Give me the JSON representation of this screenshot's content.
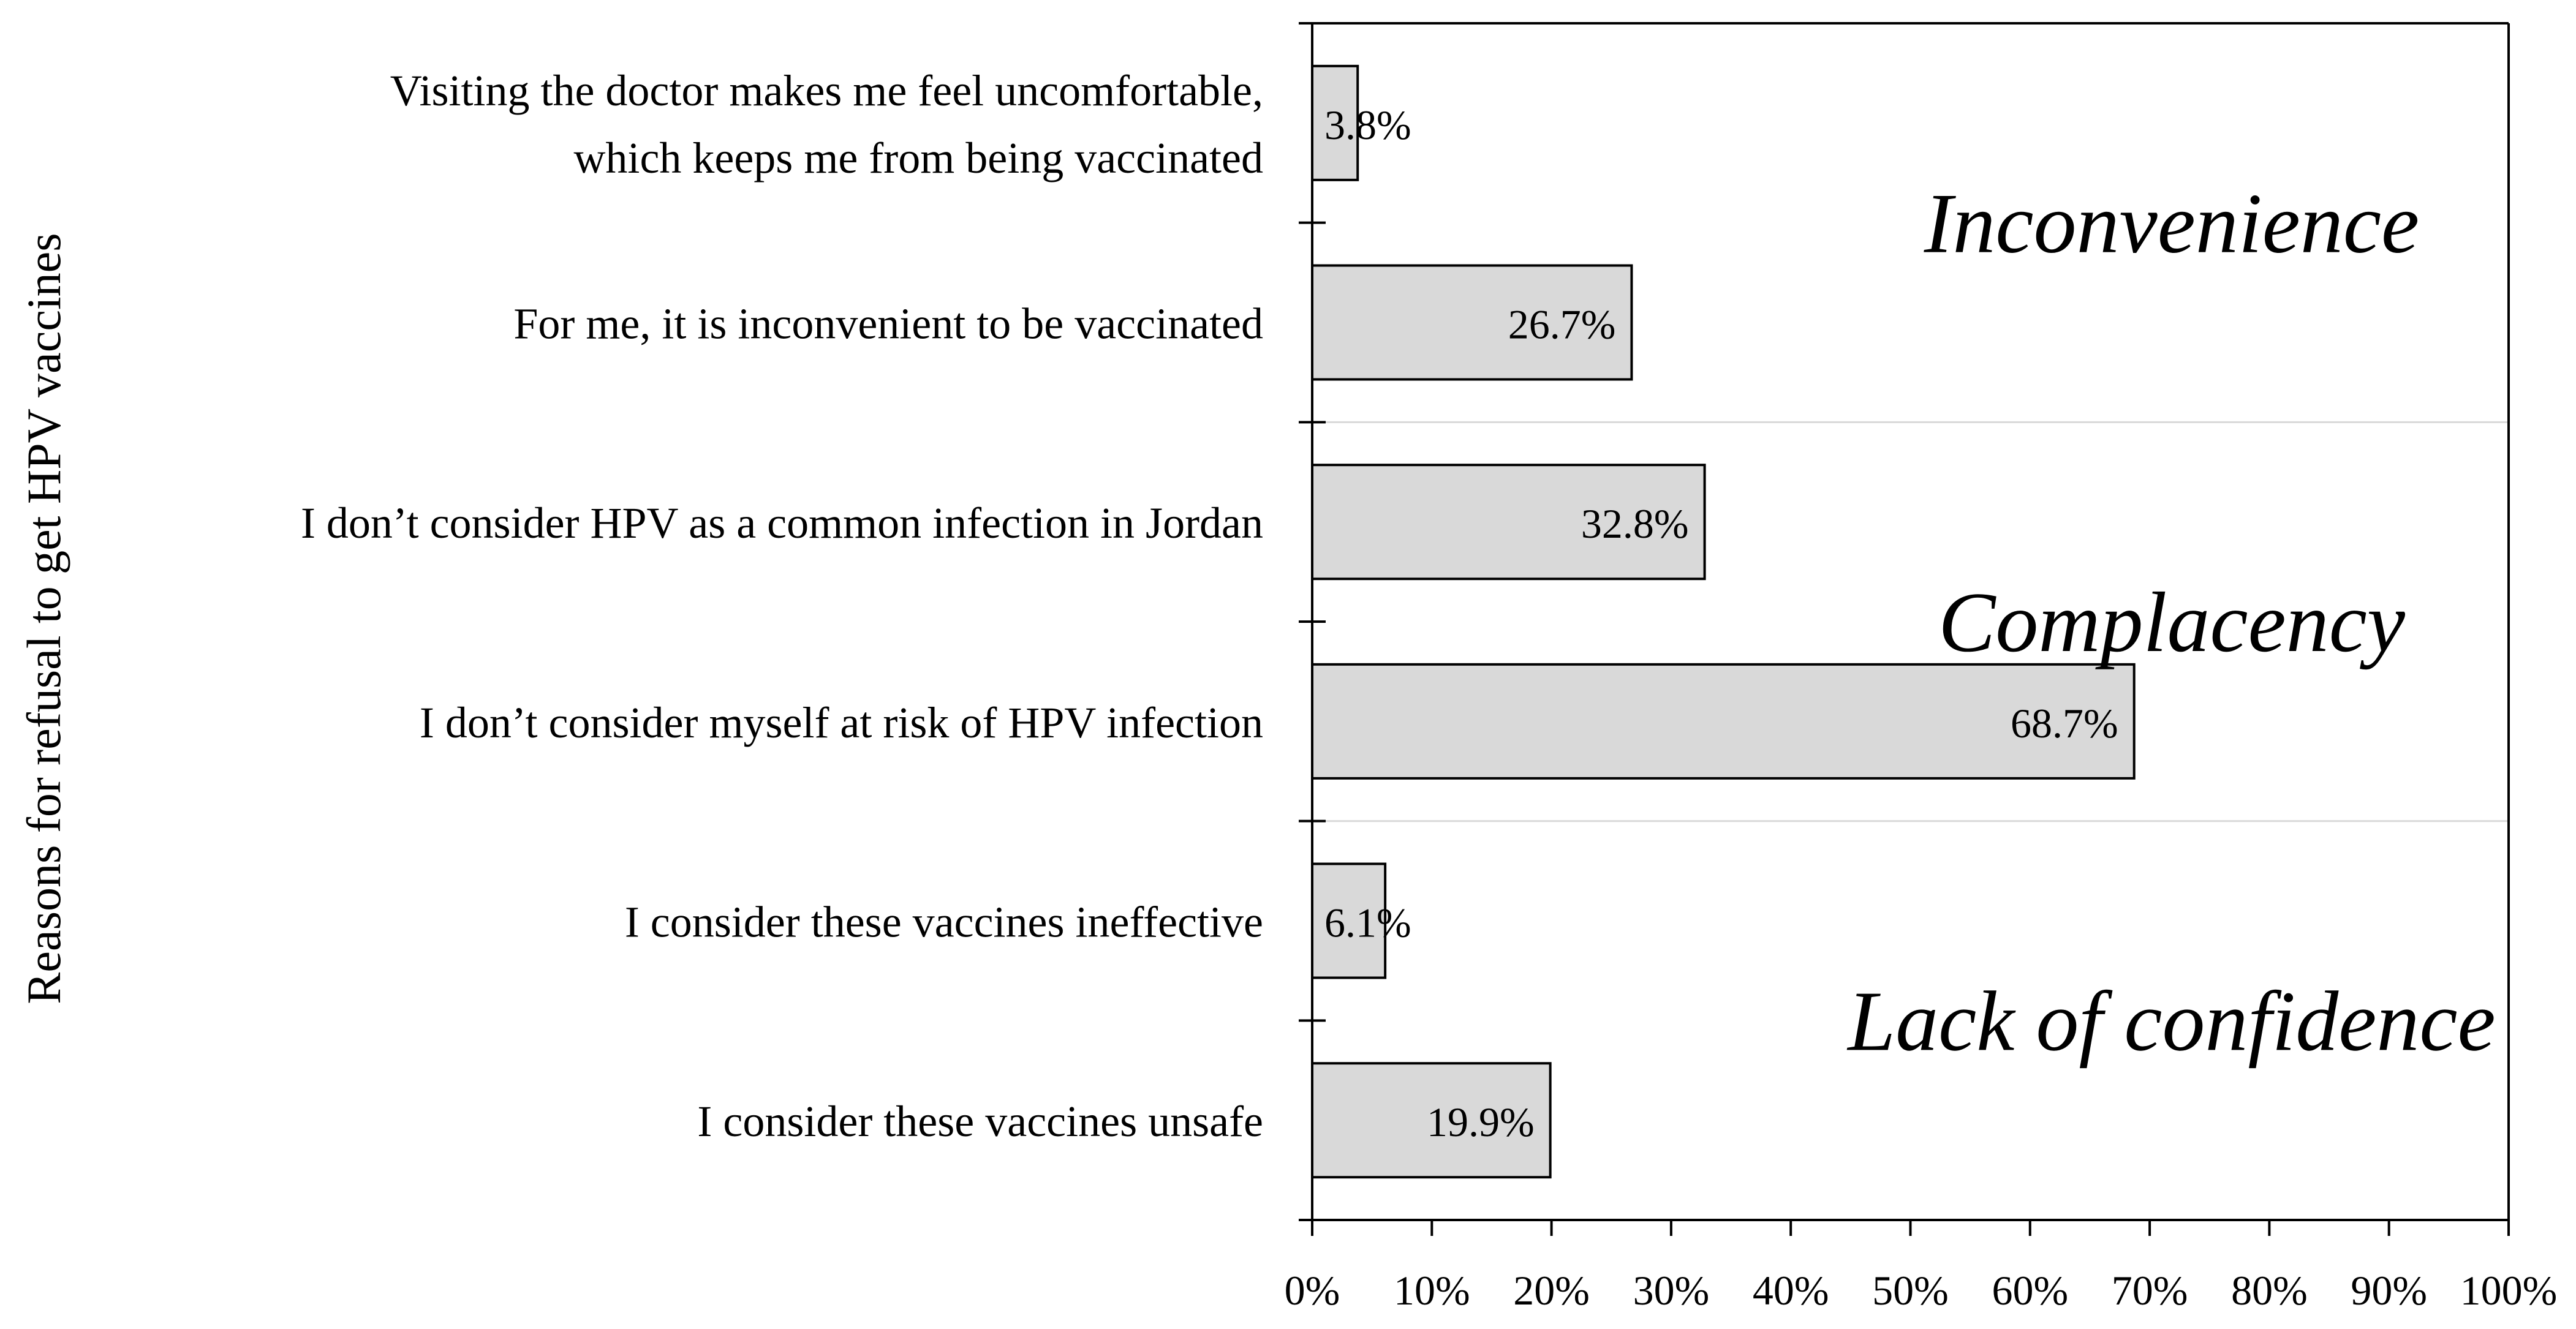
{
  "chart_data": {
    "type": "bar",
    "orientation": "horizontal",
    "ylabel": "Reasons for refusal to get HPV vaccines",
    "xlabel": "",
    "xlim": [
      0,
      100
    ],
    "x_ticks": [
      "0%",
      "10%",
      "20%",
      "30%",
      "40%",
      "50%",
      "60%",
      "70%",
      "80%",
      "90%",
      "100%"
    ],
    "categories": [
      [
        "Visiting the doctor makes me feel uncomfortable,",
        "which keeps me from being vaccinated"
      ],
      [
        "For me, it is inconvenient to be vaccinated"
      ],
      [
        "I don’t consider HPV as a common infection in Jordan"
      ],
      [
        "I don’t consider myself at risk of HPV infection"
      ],
      [
        "I consider these vaccines ineffective"
      ],
      [
        "I consider these vaccines unsafe"
      ]
    ],
    "values": [
      3.8,
      26.7,
      32.8,
      68.7,
      6.1,
      19.9
    ],
    "value_labels": [
      "3.8%",
      "26.7%",
      "32.8%",
      "68.7%",
      "6.1%",
      "19.9%"
    ],
    "groups": [
      {
        "label": "Inconvenience",
        "items": [
          0,
          1
        ]
      },
      {
        "label": "Complacency",
        "items": [
          2,
          3
        ]
      },
      {
        "label": "Lack of confidence",
        "items": [
          4,
          5
        ]
      }
    ],
    "bar_color": "#d9d9d9",
    "bar_edge_color": "#000000",
    "separator_color": "#d9d9d9",
    "grid": false,
    "legend": "none"
  }
}
